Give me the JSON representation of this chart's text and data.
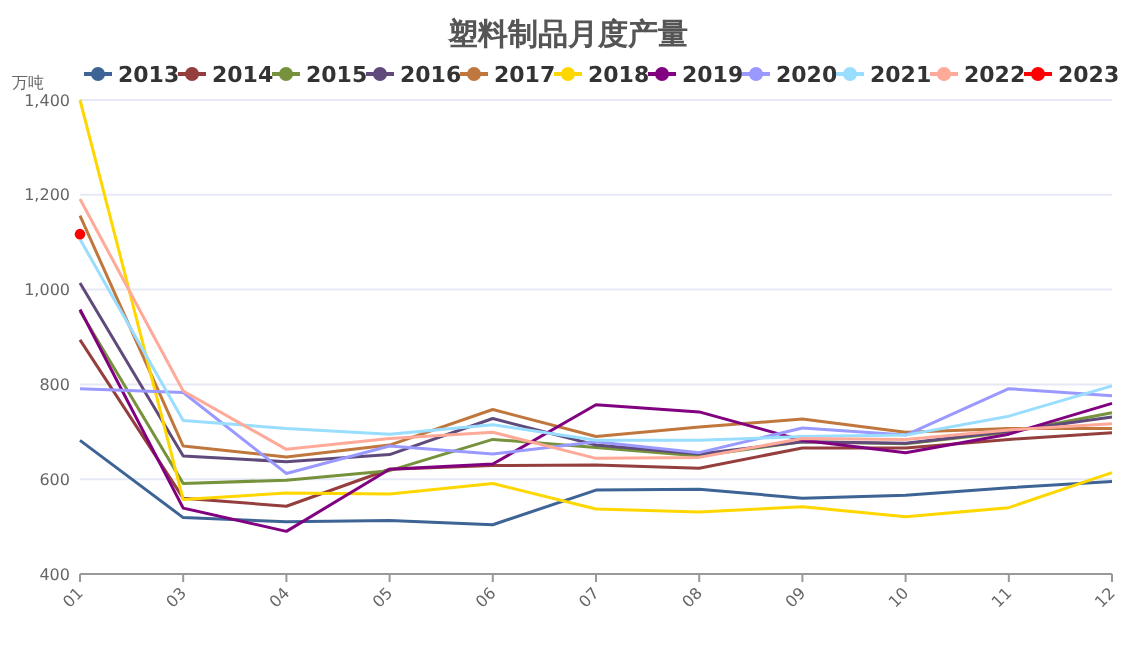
{
  "chart_data": {
    "type": "line",
    "title": "塑料制品月度产量",
    "ylabel": "万吨",
    "categories": [
      "01",
      "03",
      "04",
      "05",
      "06",
      "07",
      "08",
      "09",
      "10",
      "11",
      "12"
    ],
    "ylim": [
      400,
      1400
    ],
    "yticks": [
      {
        "value": 400,
        "label": "400"
      },
      {
        "value": 600,
        "label": "600"
      },
      {
        "value": 800,
        "label": "800"
      },
      {
        "value": 1000,
        "label": "1,000"
      },
      {
        "value": 1200,
        "label": "1,200"
      },
      {
        "value": 1400,
        "label": "1,400"
      }
    ],
    "grid": "y",
    "legend": "top",
    "marker": "none",
    "line_style": "solid",
    "series": [
      {
        "name": "2013",
        "color": "#3e6496",
        "values": [
          682,
          519,
          510,
          513,
          504,
          577,
          579,
          560,
          566,
          582,
          595
        ]
      },
      {
        "name": "2014",
        "color": "#943f3d",
        "values": [
          894,
          560,
          543,
          621,
          629,
          630,
          623,
          666,
          666,
          684,
          698
        ]
      },
      {
        "name": "2015",
        "color": "#76923c",
        "values": [
          955,
          591,
          598,
          618,
          684,
          667,
          649,
          679,
          675,
          699,
          740
        ]
      },
      {
        "name": "2016",
        "color": "#604a7b",
        "values": [
          1014,
          649,
          637,
          652,
          728,
          672,
          653,
          679,
          676,
          701,
          731
        ]
      },
      {
        "name": "2017",
        "color": "#c0773d",
        "values": [
          1156,
          670,
          647,
          672,
          747,
          690,
          710,
          727,
          699,
          707,
          707
        ]
      },
      {
        "name": "2018",
        "color": "#ffd700",
        "values": [
          1400,
          557,
          571,
          569,
          591,
          537,
          531,
          542,
          521,
          540,
          614
        ]
      },
      {
        "name": "2019",
        "color": "#800080",
        "values": [
          958,
          539,
          490,
          621,
          632,
          757,
          742,
          682,
          656,
          695,
          760
        ]
      },
      {
        "name": "2020",
        "color": "#9999ff",
        "values": [
          791,
          783,
          612,
          670,
          653,
          679,
          656,
          708,
          693,
          791,
          776
        ]
      },
      {
        "name": "2021",
        "color": "#99ddff",
        "values": [
          1106,
          724,
          707,
          695,
          715,
          682,
          682,
          690,
          693,
          733,
          797
        ]
      },
      {
        "name": "2022",
        "color": "#ffaa99",
        "values": [
          1191,
          786,
          663,
          686,
          699,
          644,
          646,
          686,
          684,
          704,
          717
        ]
      },
      {
        "name": "2023",
        "color": "#ff0000",
        "marker": "circle",
        "values": [
          1117,
          null,
          null,
          null,
          null,
          null,
          null,
          null,
          null,
          null,
          null
        ]
      }
    ]
  }
}
